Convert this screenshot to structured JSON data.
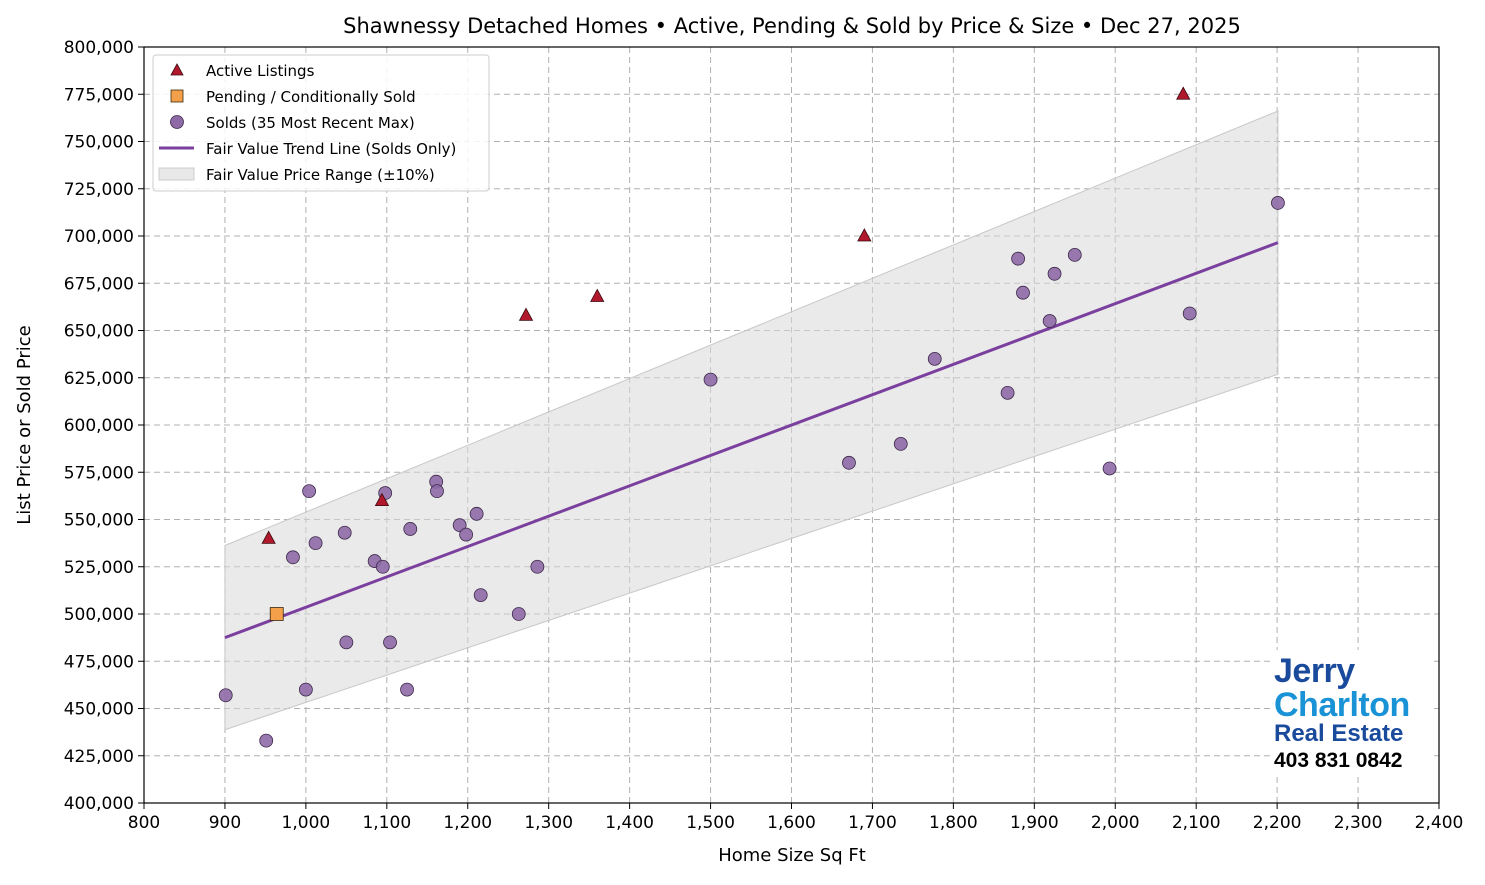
{
  "chart_data": {
    "type": "scatter",
    "title": "Shawnessy Detached Homes • Active, Pending & Sold by Price & Size • Dec 27, 2025",
    "xlabel": "Home Size Sq Ft",
    "ylabel": "List Price or Sold Price",
    "xlim": [
      800,
      2400
    ],
    "ylim": [
      400000,
      800000
    ],
    "xticks": [
      800,
      900,
      1000,
      1100,
      1200,
      1300,
      1400,
      1500,
      1600,
      1700,
      1800,
      1900,
      2000,
      2100,
      2200,
      2300,
      2400
    ],
    "xtick_labels": [
      "800",
      "900",
      "1,000",
      "1,100",
      "1,200",
      "1,300",
      "1,400",
      "1,500",
      "1,600",
      "1,700",
      "1,800",
      "1,900",
      "2,000",
      "2,100",
      "2,200",
      "2,300",
      "2,400"
    ],
    "yticks": [
      400000,
      425000,
      450000,
      475000,
      500000,
      525000,
      550000,
      575000,
      600000,
      625000,
      650000,
      675000,
      700000,
      725000,
      750000,
      775000,
      800000
    ],
    "ytick_labels": [
      "400,000",
      "425,000",
      "450,000",
      "475,000",
      "500,000",
      "525,000",
      "550,000",
      "575,000",
      "600,000",
      "625,000",
      "650,000",
      "675,000",
      "700,000",
      "725,000",
      "750,000",
      "775,000",
      "800,000"
    ],
    "grid": true,
    "legend_placement": "top-left",
    "series": [
      {
        "name": "Active Listings",
        "marker": "triangle",
        "color": "#b2182b",
        "points": [
          [
            954,
            540000
          ],
          [
            1094,
            560000
          ],
          [
            1272,
            658000
          ],
          [
            1360,
            668000
          ],
          [
            1690,
            700000
          ],
          [
            2084,
            775000
          ]
        ]
      },
      {
        "name": "Pending / Conditionally Sold",
        "marker": "square",
        "color": "#f4a04a",
        "points": [
          [
            964,
            500000
          ]
        ]
      },
      {
        "name": "Solds (35 Most Recent Max)",
        "marker": "circle",
        "color": "#8e6aa6",
        "points": [
          [
            901,
            457000
          ],
          [
            951,
            433000
          ],
          [
            984,
            530000
          ],
          [
            1004,
            565000
          ],
          [
            1000,
            460000
          ],
          [
            1012,
            537500
          ],
          [
            1048,
            543000
          ],
          [
            1050,
            485000
          ],
          [
            1085,
            528000
          ],
          [
            1095,
            525000
          ],
          [
            1098,
            564000
          ],
          [
            1104,
            485000
          ],
          [
            1125,
            460000
          ],
          [
            1129,
            545000
          ],
          [
            1161,
            570000
          ],
          [
            1162,
            565000
          ],
          [
            1190,
            547000
          ],
          [
            1198,
            542000
          ],
          [
            1211,
            553000
          ],
          [
            1216,
            510000
          ],
          [
            1263,
            500000
          ],
          [
            1286,
            525000
          ],
          [
            1500,
            624000
          ],
          [
            1671,
            580000
          ],
          [
            1735,
            590000
          ],
          [
            1777,
            635000
          ],
          [
            1867,
            617000
          ],
          [
            1880,
            688000
          ],
          [
            1886,
            670000
          ],
          [
            1919,
            655000
          ],
          [
            1925,
            680000
          ],
          [
            1950,
            690000
          ],
          [
            1993,
            577000
          ],
          [
            2092,
            659000
          ],
          [
            2201,
            717500
          ]
        ]
      },
      {
        "name": "Fair Value Trend Line (Solds Only)",
        "type": "line",
        "color": "#7b3f9e",
        "points": [
          [
            900,
            487500
          ],
          [
            2201,
            696500
          ]
        ]
      },
      {
        "name": "Fair Value Price Range (±10%)",
        "type": "band",
        "color": "#d9d9d9",
        "band_pct": 10
      }
    ]
  },
  "logo": {
    "line1": "Jerry",
    "line2": "Charlton",
    "line3": "Real Estate",
    "phone": "403 831 0842"
  }
}
